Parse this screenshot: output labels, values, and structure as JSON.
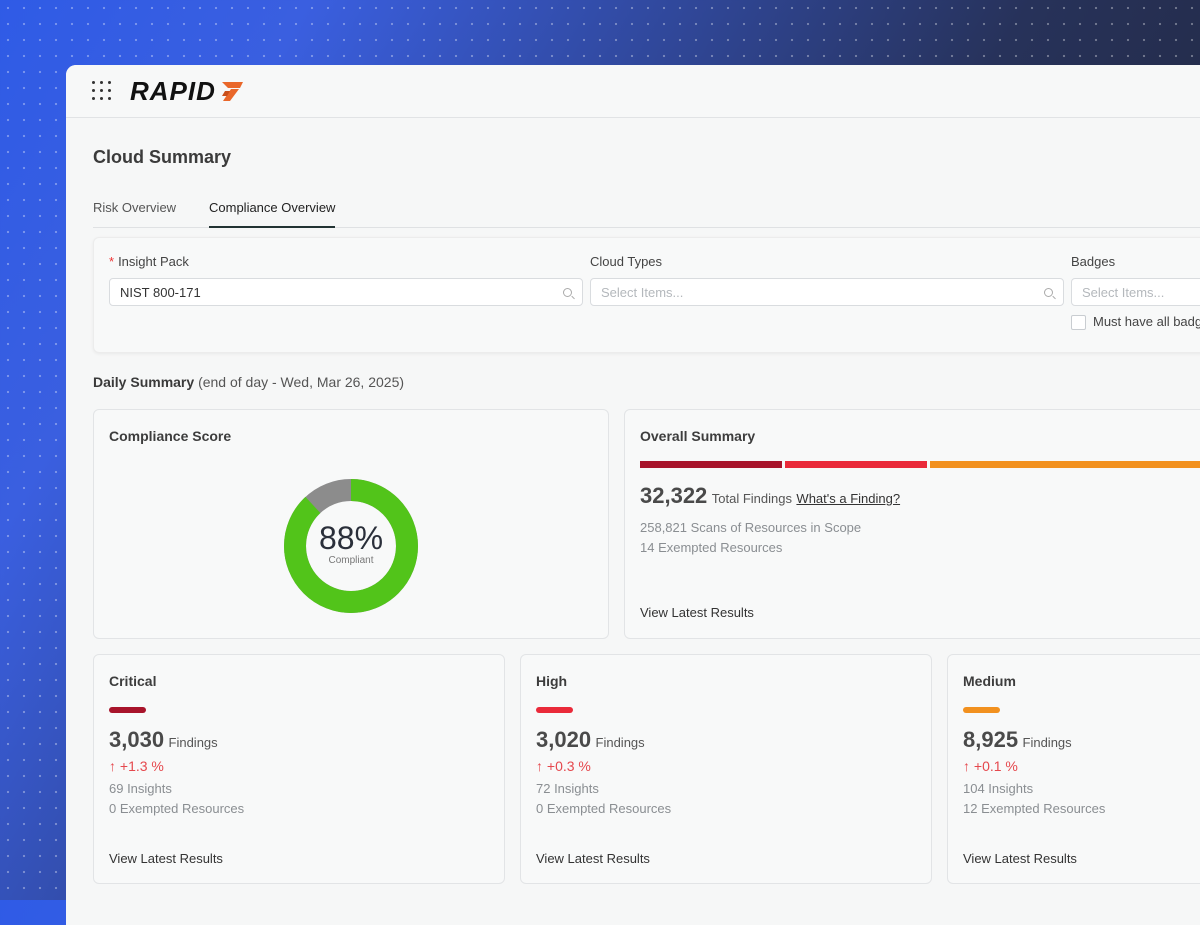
{
  "brand": {
    "logo_text": "RAPID",
    "logo_mark": "7"
  },
  "page": {
    "title": "Cloud Summary"
  },
  "tabs": [
    {
      "label": "Risk Overview"
    },
    {
      "label": "Compliance Overview"
    }
  ],
  "filters": {
    "insight_pack": {
      "label": "Insight Pack",
      "value": "NIST 800-171"
    },
    "cloud_types": {
      "label": "Cloud Types",
      "placeholder": "Select Items..."
    },
    "badges": {
      "label": "Badges",
      "placeholder": "Select Items..."
    },
    "must_have_all": "Must have all badges"
  },
  "daily_summary": {
    "label": "Daily Summary",
    "date": "(end of day - Wed, Mar 26, 2025)"
  },
  "compliance_score": {
    "title": "Compliance Score",
    "percent": 88,
    "percent_label": "88%",
    "sub": "Compliant"
  },
  "overall_summary": {
    "title": "Overall Summary",
    "total": "32,322",
    "total_label": "Total Findings",
    "whats_finding": "What's a Finding?",
    "scans": "258,821 Scans of Resources in Scope",
    "exempted": "14 Exempted Resources",
    "view": "View Latest Results"
  },
  "severities": [
    {
      "title": "Critical",
      "count": "3,030",
      "unit": "Findings",
      "delta": "+1.3 %",
      "insights": "69 Insights",
      "exempted": "0 Exempted Resources",
      "view": "View Latest Results",
      "color": "#a8142b"
    },
    {
      "title": "High",
      "count": "3,020",
      "unit": "Findings",
      "delta": "+0.3 %",
      "insights": "72 Insights",
      "exempted": "0 Exempted Resources",
      "view": "View Latest Results",
      "color": "#ea2a3a"
    },
    {
      "title": "Medium",
      "count": "8,925",
      "unit": "Findings",
      "delta": "+0.1 %",
      "insights": "104 Insights",
      "exempted": "12 Exempted Resources",
      "view": "View Latest Results",
      "color": "#f2911f"
    }
  ],
  "colors": {
    "donut_green": "#52c41a",
    "donut_gray": "#8c8c8c",
    "delta_red": "#e5484d",
    "logo_orange": "#e9672a"
  }
}
